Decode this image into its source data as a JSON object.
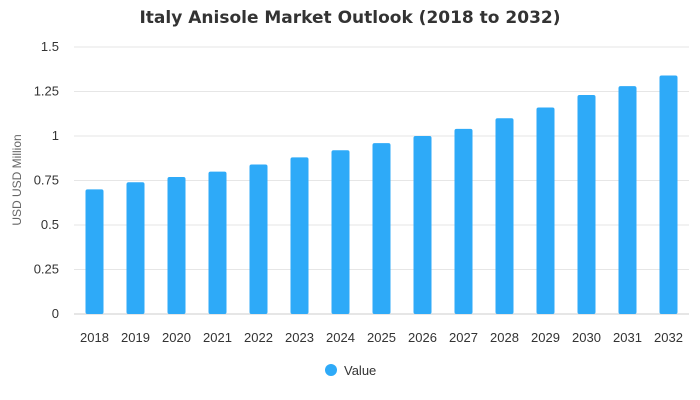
{
  "chart_data": {
    "type": "bar",
    "title": "Italy Anisole Market Outlook (2018 to 2032)",
    "xlabel": "",
    "ylabel": "USD USD Million",
    "categories": [
      "2018",
      "2019",
      "2020",
      "2021",
      "2022",
      "2023",
      "2024",
      "2025",
      "2026",
      "2027",
      "2028",
      "2029",
      "2030",
      "2031",
      "2032"
    ],
    "series": [
      {
        "name": "Value",
        "values": [
          0.7,
          0.74,
          0.77,
          0.8,
          0.84,
          0.88,
          0.92,
          0.96,
          1.0,
          1.04,
          1.1,
          1.16,
          1.23,
          1.28,
          1.34
        ]
      }
    ],
    "ylim": [
      0,
      1.5
    ],
    "yticks": [
      0,
      0.25,
      0.5,
      0.75,
      1,
      1.25,
      1.5
    ],
    "ytick_labels": [
      "0",
      "0.25",
      "0.5",
      "0.75",
      "1",
      "1.25",
      "1.5"
    ],
    "grid": true,
    "legend_position": "bottom",
    "colors": {
      "bar": "#2eaaf8",
      "grid": "#e6e6e6",
      "axis": "#cccccc"
    }
  }
}
